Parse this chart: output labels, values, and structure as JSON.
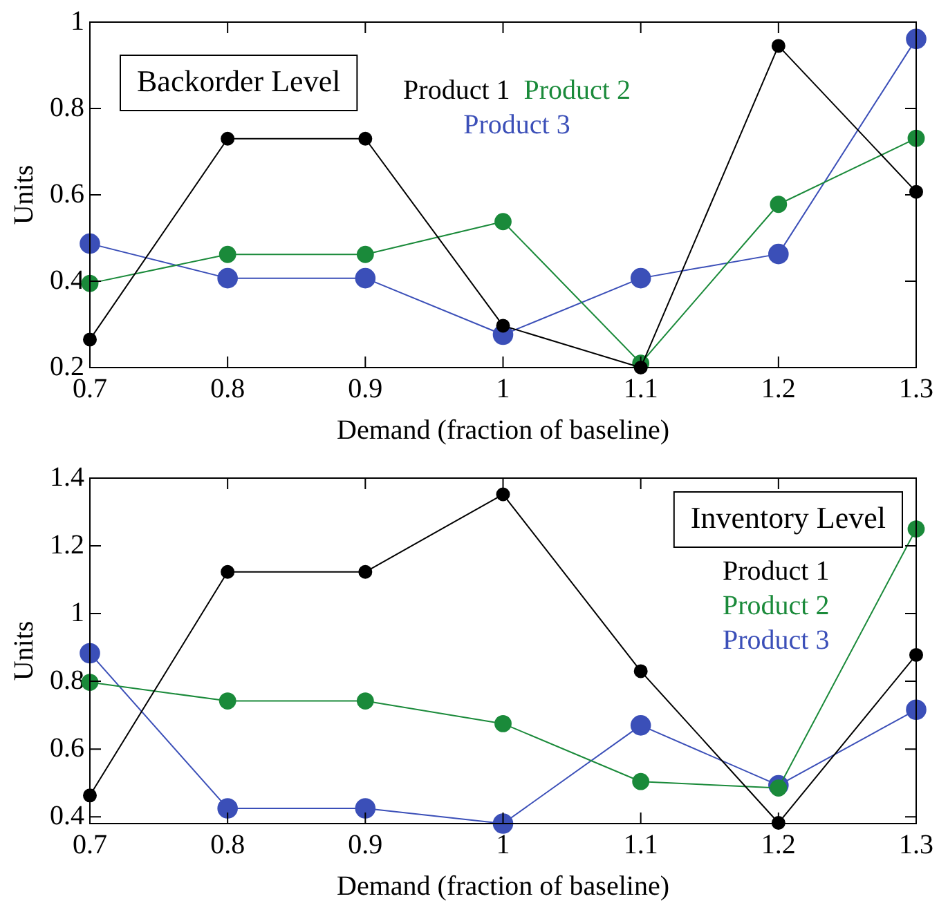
{
  "chart_data": [
    {
      "type": "line",
      "title": "Backorder Level",
      "xlabel": "Demand (fraction of baseline)",
      "ylabel": "Units",
      "x": [
        0.7,
        0.8,
        0.9,
        1.0,
        1.1,
        1.2,
        1.3
      ],
      "xlim": [
        0.7,
        1.3
      ],
      "xticks": [
        0.7,
        0.8,
        0.9,
        1,
        1.1,
        1.2,
        1.3
      ],
      "ylim": [
        0.2,
        1
      ],
      "yticks": [
        0.2,
        0.4,
        0.6,
        0.8,
        1
      ],
      "grid": false,
      "legend": "top",
      "marker": "circle",
      "line_style": "solid",
      "series": [
        {
          "name": "Product 1",
          "color": "#000000",
          "values": [
            0.265,
            0.73,
            0.73,
            0.297,
            0.2,
            0.945,
            0.607
          ]
        },
        {
          "name": "Product 2",
          "color": "#1a8a3a",
          "values": [
            0.395,
            0.462,
            0.462,
            0.538,
            0.21,
            0.578,
            0.731
          ]
        },
        {
          "name": "Product 3",
          "color": "#3b4fb8",
          "values": [
            0.487,
            0.407,
            0.407,
            0.276,
            0.407,
            0.463,
            0.961
          ]
        }
      ]
    },
    {
      "type": "line",
      "title": "Inventory Level",
      "xlabel": "Demand (fraction of baseline)",
      "ylabel": "Units",
      "x": [
        0.7,
        0.8,
        0.9,
        1.0,
        1.1,
        1.2,
        1.3
      ],
      "xlim": [
        0.7,
        1.3
      ],
      "xticks": [
        0.7,
        0.8,
        0.9,
        1,
        1.1,
        1.2,
        1.3
      ],
      "ylim": [
        0.38,
        1.4
      ],
      "yticks": [
        0.4,
        0.6,
        0.8,
        1,
        1.2,
        1.4
      ],
      "grid": false,
      "legend": "top right",
      "marker": "circle",
      "line_style": "solid",
      "series": [
        {
          "name": "Product 1",
          "color": "#000000",
          "values": [
            0.463,
            1.123,
            1.123,
            1.352,
            0.83,
            0.382,
            0.878
          ]
        },
        {
          "name": "Product 2",
          "color": "#1a8a3a",
          "values": [
            0.797,
            0.742,
            0.742,
            0.675,
            0.504,
            0.485,
            1.25
          ]
        },
        {
          "name": "Product 3",
          "color": "#3b4fb8",
          "values": [
            0.883,
            0.425,
            0.425,
            0.38,
            0.67,
            0.493,
            0.716
          ]
        }
      ]
    }
  ]
}
